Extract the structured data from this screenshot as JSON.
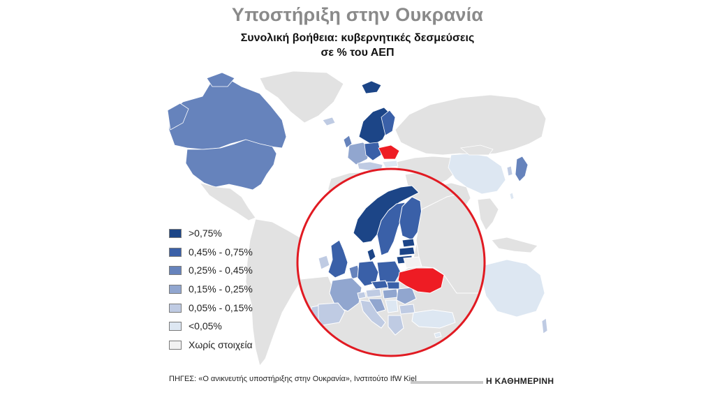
{
  "header": {
    "title": "Υποστήριξη στην Ουκρανία",
    "subtitle_line1": "Συνολική βοήθεια: κυβερνητικές δεσμεύσεις",
    "subtitle_line2": "σε % του ΑΕΠ"
  },
  "colors": {
    "ocean": "#ffffff",
    "land_no_data": "#e2e2e2",
    "ukraine": "#ee1c24",
    "circle_border": "#e11a22",
    "gt_075": "#1c4587",
    "c045_075": "#3a60a8",
    "c025_045": "#6683bc",
    "c015_025": "#91a6cf",
    "c005_015": "#bfcbe3",
    "lt_005": "#dde7f2",
    "none": "#f2f2f2"
  },
  "legend": {
    "items": [
      {
        "label": ">0,75%",
        "color": "#1c4587"
      },
      {
        "label": "0,45% - 0,75%",
        "color": "#3a60a8"
      },
      {
        "label": "0,25% - 0,45%",
        "color": "#6683bc"
      },
      {
        "label": "0,15% - 0,25%",
        "color": "#91a6cf"
      },
      {
        "label": "0,05% - 0,15%",
        "color": "#bfcbe3"
      },
      {
        "label": "<0,05%",
        "color": "#dde7f2"
      },
      {
        "label": "Χωρίς στοιχεία",
        "color": "#f2f2f2"
      }
    ]
  },
  "footer": {
    "source": "ΠΗΓΕΣ: «Ο ανικνευτής υποστήριξης στην Ουκρανία», Ινστιτούτο IfW Kiel",
    "publisher": "Η ΚΑΘΗΜΕΡΙΝΗ"
  }
}
